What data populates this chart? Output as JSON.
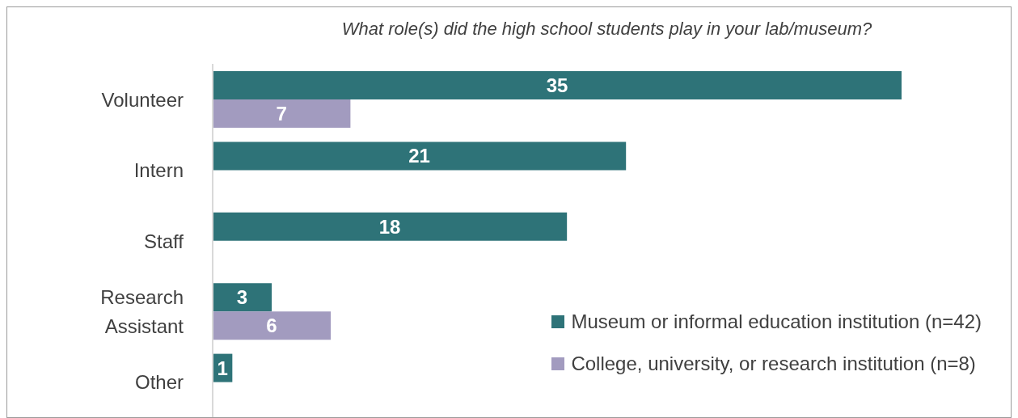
{
  "chart_data": {
    "type": "bar",
    "orientation": "horizontal",
    "title": "What role(s) did the high school students play in your lab/museum?",
    "categories": [
      "Volunteer",
      "Intern",
      "Staff",
      "Research Assistant",
      "Other"
    ],
    "series": [
      {
        "name": "Museum or informal education institution (n=42)",
        "color": "#2e7378",
        "values": [
          35,
          21,
          18,
          3,
          1
        ]
      },
      {
        "name": "College, university, or research institution (n=8)",
        "color": "#a29bbf",
        "values": [
          7,
          null,
          null,
          6,
          null
        ]
      }
    ],
    "data_labels": true,
    "legend": "bottom right"
  }
}
